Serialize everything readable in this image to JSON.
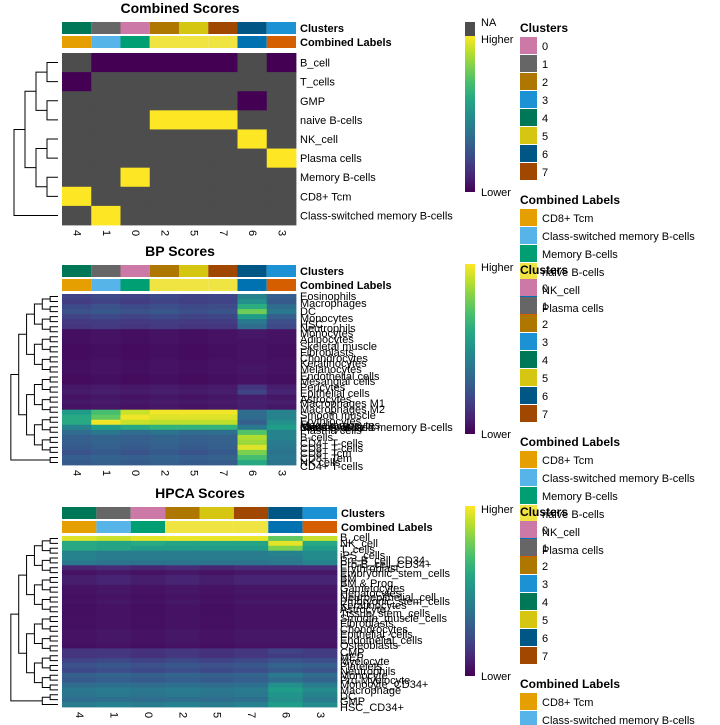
{
  "chart_data": {
    "type": "heatmap",
    "cluster_colors": {
      "0": "#CC79A7",
      "1": "#666666",
      "2": "#AD7700",
      "3": "#1C91D4",
      "4": "#007756",
      "5": "#D5C711",
      "6": "#005685",
      "7": "#A04700"
    },
    "label_colors": {
      "CD8+ Tcm": "#E69F00",
      "Class-switched memory B-cells": "#56B4E9",
      "Memory B-cells": "#009E73",
      "naive B-cells": "#F0E442",
      "NK_cell": "#0072B2",
      "Plasma cells": "#D55E00"
    },
    "panels": [
      {
        "title": "Combined Scores",
        "columns": [
          "4",
          "1",
          "0",
          "2",
          "5",
          "7",
          "6",
          "3"
        ],
        "combined_labels": [
          "CD8+ Tcm",
          "Class-switched memory B-cells",
          "Memory B-cells",
          "naive B-cells",
          "naive B-cells",
          "naive B-cells",
          "NK_cell",
          "Plasma cells"
        ],
        "rows": [
          "B_cell",
          "T_cells",
          "GMP",
          "naive B-cells",
          "NK_cell",
          "Plasma cells",
          "Memory B-cells",
          "CD8+ Tcm",
          "Class-switched memory B-cells"
        ],
        "values": [
          [
            null,
            0,
            0,
            0,
            0,
            0,
            null,
            0
          ],
          [
            0,
            null,
            null,
            null,
            null,
            null,
            null,
            null
          ],
          [
            null,
            null,
            null,
            null,
            null,
            null,
            0,
            null
          ],
          [
            null,
            null,
            null,
            1,
            1,
            1,
            null,
            null
          ],
          [
            null,
            null,
            null,
            null,
            null,
            null,
            1,
            null
          ],
          [
            null,
            null,
            null,
            null,
            null,
            null,
            null,
            1
          ],
          [
            null,
            null,
            1,
            null,
            null,
            null,
            null,
            null
          ],
          [
            1,
            null,
            null,
            null,
            null,
            null,
            null,
            null
          ],
          [
            null,
            1,
            null,
            null,
            null,
            null,
            null,
            null
          ]
        ],
        "legend": {
          "na": "NA",
          "high": "Higher",
          "low": "Lower"
        }
      },
      {
        "title": "BP Scores",
        "columns": [
          "4",
          "1",
          "0",
          "2",
          "5",
          "7",
          "6",
          "3"
        ],
        "combined_labels": [
          "CD8+ Tcm",
          "Class-switched memory B-cells",
          "Memory B-cells",
          "naive B-cells",
          "naive B-cells",
          "naive B-cells",
          "NK_cell",
          "Plasma cells"
        ],
        "rows": [
          "Eosinophils",
          "Macrophages",
          "DC",
          "Monocytes",
          "HSC",
          "Neutrophils",
          "Monocytes",
          "Adipocytes",
          "Skeletal muscle",
          "Fibroblasts",
          "Chondrocytes",
          "Keratinocytes",
          "Melanocytes",
          "Endothelial cells",
          "Mesangial cells",
          "Pericytes",
          "Epithelial cells",
          "Astrocytes",
          "Macrophages M1",
          "Macrophages M2",
          "Smooth muscle",
          "Erythrocytes",
          "Megakaryocytes",
          "naive B-cells",
          "Memory B-cells",
          "Class-switched memory B-cells",
          "Plasma cells",
          "B-cells",
          "CD4+ T-cells",
          "CD8+ T-cells",
          "CD8+ Tcm",
          "CD8+ Tem",
          "NK cells",
          "CD4+ T-cells"
        ],
        "row_label_y": [
          296,
          303,
          311,
          318,
          324,
          328,
          333,
          339,
          346,
          352,
          358,
          363,
          369,
          376,
          381,
          387,
          393,
          399,
          403,
          409,
          415,
          421,
          425,
          427,
          427,
          427,
          430,
          437,
          443,
          448,
          453,
          458,
          462,
          466
        ],
        "values": [
          [
            0.2,
            0.22,
            0.2,
            0.22,
            0.2,
            0.21,
            0.45,
            0.3
          ],
          [
            0.18,
            0.2,
            0.18,
            0.2,
            0.19,
            0.2,
            0.5,
            0.28
          ],
          [
            0.22,
            0.25,
            0.22,
            0.24,
            0.22,
            0.23,
            0.62,
            0.35
          ],
          [
            0.25,
            0.27,
            0.25,
            0.27,
            0.24,
            0.26,
            0.78,
            0.4
          ],
          [
            0.2,
            0.22,
            0.2,
            0.22,
            0.2,
            0.21,
            0.55,
            0.3
          ],
          [
            0.17,
            0.18,
            0.17,
            0.18,
            0.17,
            0.18,
            0.4,
            0.24
          ],
          [
            0.15,
            0.17,
            0.15,
            0.17,
            0.15,
            0.16,
            0.35,
            0.22
          ],
          [
            0.04,
            0.05,
            0.04,
            0.05,
            0.04,
            0.05,
            0.06,
            0.05
          ],
          [
            0.04,
            0.05,
            0.04,
            0.05,
            0.04,
            0.05,
            0.06,
            0.05
          ],
          [
            0.04,
            0.05,
            0.04,
            0.05,
            0.04,
            0.05,
            0.05,
            0.05
          ],
          [
            0.03,
            0.04,
            0.03,
            0.04,
            0.03,
            0.04,
            0.05,
            0.04
          ],
          [
            0.03,
            0.04,
            0.03,
            0.04,
            0.03,
            0.04,
            0.05,
            0.04
          ],
          [
            0.03,
            0.04,
            0.03,
            0.04,
            0.03,
            0.04,
            0.05,
            0.04
          ],
          [
            0.04,
            0.05,
            0.04,
            0.05,
            0.04,
            0.05,
            0.05,
            0.05
          ],
          [
            0.04,
            0.05,
            0.04,
            0.05,
            0.04,
            0.05,
            0.06,
            0.05
          ],
          [
            0.04,
            0.05,
            0.04,
            0.05,
            0.04,
            0.05,
            0.06,
            0.05
          ],
          [
            0.03,
            0.04,
            0.03,
            0.04,
            0.03,
            0.04,
            0.05,
            0.04
          ],
          [
            0.03,
            0.04,
            0.03,
            0.04,
            0.03,
            0.04,
            0.05,
            0.04
          ],
          [
            0.06,
            0.07,
            0.06,
            0.07,
            0.06,
            0.07,
            0.15,
            0.08
          ],
          [
            0.07,
            0.08,
            0.07,
            0.08,
            0.07,
            0.08,
            0.2,
            0.1
          ],
          [
            0.05,
            0.06,
            0.05,
            0.06,
            0.05,
            0.06,
            0.08,
            0.06
          ],
          [
            0.06,
            0.07,
            0.06,
            0.07,
            0.06,
            0.07,
            0.09,
            0.08
          ],
          [
            0.05,
            0.06,
            0.05,
            0.06,
            0.05,
            0.06,
            0.08,
            0.06
          ],
          [
            0.55,
            0.7,
            0.92,
            0.98,
            0.98,
            0.98,
            0.35,
            0.45
          ],
          [
            0.6,
            0.75,
            0.98,
            0.95,
            0.95,
            0.95,
            0.35,
            0.45
          ],
          [
            0.6,
            0.98,
            0.92,
            0.9,
            0.9,
            0.9,
            0.3,
            0.5
          ],
          [
            0.45,
            0.55,
            0.6,
            0.65,
            0.65,
            0.65,
            0.4,
            0.55
          ],
          [
            0.35,
            0.4,
            0.35,
            0.38,
            0.35,
            0.36,
            0.72,
            0.45
          ],
          [
            0.3,
            0.32,
            0.3,
            0.32,
            0.3,
            0.31,
            0.88,
            0.45
          ],
          [
            0.3,
            0.32,
            0.3,
            0.32,
            0.3,
            0.31,
            0.85,
            0.42
          ],
          [
            0.28,
            0.3,
            0.28,
            0.3,
            0.28,
            0.3,
            0.95,
            0.4
          ],
          [
            0.26,
            0.28,
            0.26,
            0.28,
            0.26,
            0.28,
            0.8,
            0.38
          ],
          [
            0.3,
            0.32,
            0.3,
            0.32,
            0.3,
            0.31,
            0.7,
            0.4
          ],
          [
            0.28,
            0.3,
            0.28,
            0.3,
            0.28,
            0.29,
            0.6,
            0.38
          ]
        ],
        "legend": {
          "high": "Higher",
          "low": "Lower"
        }
      },
      {
        "title": "HPCA Scores",
        "columns": [
          "4",
          "1",
          "0",
          "2",
          "5",
          "7",
          "6",
          "3"
        ],
        "combined_labels": [
          "CD8+ Tcm",
          "Class-switched memory B-cells",
          "Memory B-cells",
          "naive B-cells",
          "naive B-cells",
          "naive B-cells",
          "NK_cell",
          "Plasma cells"
        ],
        "rows": [
          "B_cell",
          "NK_cell",
          "T_cells",
          "iPS_cells",
          "Pre-B_cell_CD34-",
          "Pro-B_cell_CD34+",
          "Erythroblast",
          "Embryonic_stem_cells",
          "BM",
          "BM & Prog.",
          "Gametocytes",
          "Hepatocytes",
          "Neuroepithelial_cell",
          "Embryonic_stem_cells",
          "Keratinocytes",
          "Astrocyte",
          "Tissue_stem_cells",
          "Smooth_muscle_cells",
          "Fibroblasts",
          "Chondrocytes",
          "Epithelial_cells",
          "Endothelial_cells",
          "Osteoblasts",
          "CMP",
          "MEP",
          "Myelocyte",
          "Platelets",
          "Neutrophils",
          "Monocyte",
          "Pro-Myelocyte",
          "Monocyte_CD34+",
          "Macrophage",
          "DC",
          "GMP",
          "HSC_CD34+"
        ],
        "row_label_y": [
          537,
          543,
          549,
          555,
          560,
          564,
          568,
          573,
          578,
          583,
          588,
          593,
          597,
          601,
          605,
          609,
          613,
          618,
          623,
          629,
          634,
          640,
          645,
          652,
          657,
          661,
          666,
          671,
          675,
          680,
          684,
          690,
          696,
          701,
          707
        ],
        "values": [
          [
            0.95,
            0.92,
            0.96,
            0.97,
            0.97,
            0.97,
            0.75,
            0.92
          ],
          [
            0.6,
            0.58,
            0.6,
            0.58,
            0.58,
            0.58,
            0.96,
            0.6
          ],
          [
            0.6,
            0.58,
            0.55,
            0.55,
            0.55,
            0.55,
            0.8,
            0.55
          ],
          [
            0.45,
            0.42,
            0.42,
            0.42,
            0.42,
            0.42,
            0.45,
            0.48
          ],
          [
            0.45,
            0.42,
            0.42,
            0.42,
            0.42,
            0.42,
            0.42,
            0.48
          ],
          [
            0.4,
            0.38,
            0.38,
            0.38,
            0.38,
            0.38,
            0.4,
            0.45
          ],
          [
            0.1,
            0.12,
            0.1,
            0.12,
            0.1,
            0.12,
            0.12,
            0.12
          ],
          [
            0.05,
            0.06,
            0.05,
            0.06,
            0.05,
            0.06,
            0.06,
            0.06
          ],
          [
            0.08,
            0.1,
            0.08,
            0.1,
            0.08,
            0.1,
            0.1,
            0.1
          ],
          [
            0.08,
            0.1,
            0.08,
            0.1,
            0.08,
            0.1,
            0.1,
            0.1
          ],
          [
            0.05,
            0.06,
            0.05,
            0.06,
            0.05,
            0.06,
            0.06,
            0.06
          ],
          [
            0.05,
            0.06,
            0.05,
            0.06,
            0.05,
            0.06,
            0.06,
            0.06
          ],
          [
            0.04,
            0.05,
            0.04,
            0.05,
            0.04,
            0.05,
            0.05,
            0.05
          ],
          [
            0.05,
            0.06,
            0.05,
            0.06,
            0.05,
            0.06,
            0.06,
            0.06
          ],
          [
            0.04,
            0.05,
            0.04,
            0.05,
            0.04,
            0.05,
            0.05,
            0.05
          ],
          [
            0.04,
            0.05,
            0.04,
            0.05,
            0.04,
            0.05,
            0.05,
            0.05
          ],
          [
            0.04,
            0.05,
            0.04,
            0.05,
            0.04,
            0.05,
            0.05,
            0.05
          ],
          [
            0.04,
            0.05,
            0.04,
            0.05,
            0.04,
            0.05,
            0.05,
            0.05
          ],
          [
            0.04,
            0.05,
            0.04,
            0.05,
            0.04,
            0.05,
            0.05,
            0.05
          ],
          [
            0.05,
            0.06,
            0.05,
            0.06,
            0.05,
            0.06,
            0.06,
            0.06
          ],
          [
            0.05,
            0.06,
            0.05,
            0.06,
            0.05,
            0.06,
            0.06,
            0.06
          ],
          [
            0.05,
            0.06,
            0.05,
            0.06,
            0.05,
            0.06,
            0.06,
            0.06
          ],
          [
            0.04,
            0.05,
            0.04,
            0.05,
            0.04,
            0.05,
            0.05,
            0.05
          ],
          [
            0.15,
            0.16,
            0.14,
            0.16,
            0.14,
            0.16,
            0.2,
            0.18
          ],
          [
            0.15,
            0.16,
            0.14,
            0.16,
            0.14,
            0.16,
            0.18,
            0.18
          ],
          [
            0.2,
            0.22,
            0.2,
            0.22,
            0.2,
            0.22,
            0.25,
            0.24
          ],
          [
            0.25,
            0.27,
            0.25,
            0.27,
            0.25,
            0.27,
            0.32,
            0.3
          ],
          [
            0.22,
            0.24,
            0.22,
            0.24,
            0.22,
            0.24,
            0.28,
            0.26
          ],
          [
            0.3,
            0.32,
            0.3,
            0.32,
            0.3,
            0.32,
            0.4,
            0.35
          ],
          [
            0.28,
            0.3,
            0.28,
            0.3,
            0.28,
            0.3,
            0.35,
            0.32
          ],
          [
            0.35,
            0.36,
            0.35,
            0.36,
            0.35,
            0.36,
            0.5,
            0.42
          ],
          [
            0.4,
            0.42,
            0.4,
            0.42,
            0.4,
            0.42,
            0.55,
            0.48
          ],
          [
            0.38,
            0.4,
            0.38,
            0.4,
            0.38,
            0.4,
            0.52,
            0.45
          ],
          [
            0.35,
            0.36,
            0.35,
            0.36,
            0.35,
            0.36,
            0.5,
            0.42
          ],
          [
            0.42,
            0.44,
            0.42,
            0.44,
            0.42,
            0.44,
            0.55,
            0.48
          ]
        ],
        "legend": {
          "high": "Higher",
          "low": "Lower"
        }
      }
    ],
    "annotation_names": {
      "clusters": "Clusters",
      "combined_labels": "Combined Labels"
    },
    "side_legends": [
      {
        "title": "Clusters",
        "type": "clusters",
        "items": [
          "0",
          "1",
          "2",
          "3",
          "4",
          "5",
          "6",
          "7"
        ]
      },
      {
        "title": "Combined Labels",
        "type": "labels",
        "items": [
          "CD8+ Tcm",
          "Class-switched memory B-cells",
          "Memory B-cells",
          "naive B-cells",
          "NK_cell",
          "Plasma cells"
        ]
      },
      {
        "title": "Clusters",
        "type": "clusters",
        "items": [
          "0",
          "1",
          "2",
          "3",
          "4",
          "5",
          "6",
          "7"
        ]
      },
      {
        "title": "Combined Labels",
        "type": "labels",
        "items": [
          "CD8+ Tcm",
          "Class-switched memory B-cells",
          "Memory B-cells",
          "naive B-cells",
          "NK_cell",
          "Plasma cells"
        ]
      },
      {
        "title": "Clusters",
        "type": "clusters",
        "items": [
          "0",
          "1",
          "2",
          "3",
          "4",
          "5",
          "6",
          "7"
        ]
      },
      {
        "title": "Combined Labels",
        "type": "labels",
        "items": [
          "CD8+ Tcm",
          "Class-switched memory B-cells"
        ]
      }
    ]
  }
}
